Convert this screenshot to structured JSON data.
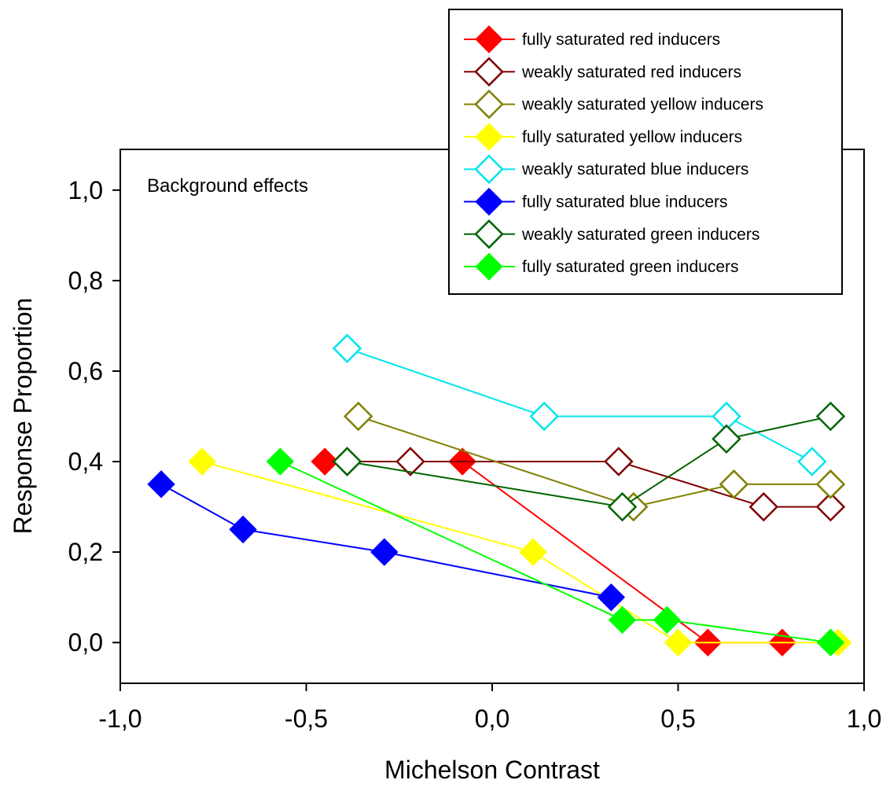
{
  "chart_data": {
    "type": "line",
    "xlabel": "Michelson Contrast",
    "ylabel": "Response Proportion",
    "annotation": "Background effects",
    "xlim": [
      -1.0,
      1.0
    ],
    "ylim": [
      -0.09,
      1.09
    ],
    "xticks": [
      -1.0,
      -0.5,
      0.0,
      0.5,
      1.0
    ],
    "xtick_labels": [
      "-1,0",
      "-0,5",
      "0,0",
      "0,5",
      "1,0"
    ],
    "yticks": [
      0.0,
      0.2,
      0.4,
      0.6,
      0.8,
      1.0
    ],
    "ytick_labels": [
      "0,0",
      "0,2",
      "0,4",
      "0,6",
      "0,8",
      "1,0"
    ],
    "grid": false,
    "legend_position": "top-right",
    "series": [
      {
        "name": "fully saturated red inducers",
        "color": "#ff0000",
        "filled": true,
        "x": [
          -0.45,
          -0.08,
          0.58,
          0.78
        ],
        "y": [
          0.4,
          0.4,
          0.0,
          0.0
        ]
      },
      {
        "name": "weakly saturated red inducers",
        "color": "#800000",
        "filled": false,
        "x": [
          -0.39,
          -0.22,
          0.34,
          0.73,
          0.91
        ],
        "y": [
          0.4,
          0.4,
          0.4,
          0.3,
          0.3
        ]
      },
      {
        "name": "weakly saturated yellow inducers",
        "color": "#808000",
        "filled": false,
        "x": [
          -0.36,
          0.38,
          0.65,
          0.91
        ],
        "y": [
          0.5,
          0.3,
          0.35,
          0.35
        ]
      },
      {
        "name": "fully saturated yellow inducers",
        "color": "#ffff00",
        "filled": true,
        "x": [
          -0.78,
          0.11,
          0.5,
          0.93
        ],
        "y": [
          0.4,
          0.2,
          0.0,
          0.0
        ]
      },
      {
        "name": "weakly saturated blue inducers",
        "color": "#00e5ee",
        "filled": false,
        "x": [
          -0.39,
          0.14,
          0.63,
          0.86
        ],
        "y": [
          0.65,
          0.5,
          0.5,
          0.4
        ]
      },
      {
        "name": "fully saturated blue inducers",
        "color": "#0000ff",
        "filled": true,
        "x": [
          -0.89,
          -0.67,
          -0.29,
          0.32
        ],
        "y": [
          0.35,
          0.25,
          0.2,
          0.1
        ]
      },
      {
        "name": "weakly saturated green inducers",
        "color": "#006400",
        "filled": false,
        "x": [
          -0.39,
          0.35,
          0.63,
          0.91
        ],
        "y": [
          0.4,
          0.3,
          0.45,
          0.5
        ]
      },
      {
        "name": "fully saturated green inducers",
        "color": "#00ff00",
        "filled": true,
        "x": [
          -0.57,
          0.35,
          0.47,
          0.91
        ],
        "y": [
          0.4,
          0.05,
          0.05,
          0.0
        ]
      }
    ]
  }
}
